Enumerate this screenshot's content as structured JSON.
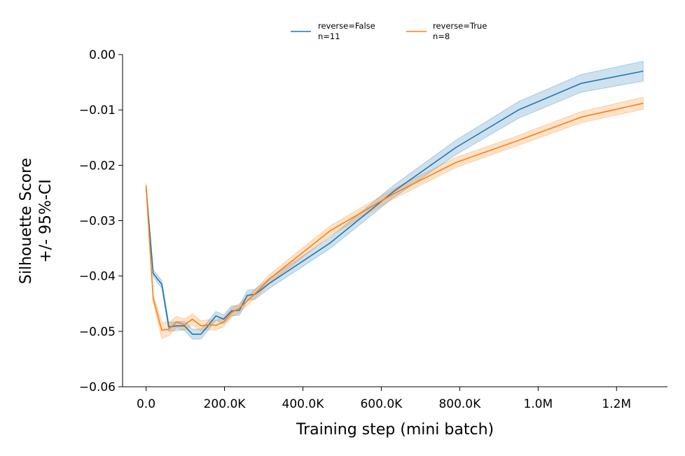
{
  "chart_data": {
    "type": "line",
    "xlabel": "Training step (mini batch)",
    "ylabel_lines": [
      "Silhouette Score",
      "+/- 95%-CI"
    ],
    "xlim": [
      -60000,
      1330000
    ],
    "ylim": [
      -0.06,
      0.0
    ],
    "x_ticks": [
      {
        "value": 0,
        "label": "0.0"
      },
      {
        "value": 200000,
        "label": "200.0K"
      },
      {
        "value": 400000,
        "label": "400.0K"
      },
      {
        "value": 600000,
        "label": "600.0K"
      },
      {
        "value": 800000,
        "label": "800.0K"
      },
      {
        "value": 1000000,
        "label": "1.0M"
      },
      {
        "value": 1200000,
        "label": "1.2M"
      }
    ],
    "y_ticks": [
      {
        "value": 0.0,
        "label": "0.00"
      },
      {
        "value": -0.01,
        "label": "−0.01"
      },
      {
        "value": -0.02,
        "label": "−0.02"
      },
      {
        "value": -0.03,
        "label": "−0.03"
      },
      {
        "value": -0.04,
        "label": "−0.04"
      },
      {
        "value": -0.05,
        "label": "−0.05"
      },
      {
        "value": -0.06,
        "label": "−0.06"
      }
    ],
    "grid": false,
    "legend_placement": "top-center",
    "series": [
      {
        "name": "reverse=False",
        "n_label": "n=11",
        "color": "#1f77b4",
        "points": [
          {
            "x": 0,
            "y": -0.024,
            "ci": 0.0005
          },
          {
            "x": 18000,
            "y": -0.0395,
            "ci": 0.0006
          },
          {
            "x": 40000,
            "y": -0.0415,
            "ci": 0.0007
          },
          {
            "x": 58000,
            "y": -0.0492,
            "ci": 0.0008
          },
          {
            "x": 78000,
            "y": -0.049,
            "ci": 0.0008
          },
          {
            "x": 98000,
            "y": -0.049,
            "ci": 0.0008
          },
          {
            "x": 118000,
            "y": -0.0505,
            "ci": 0.0009
          },
          {
            "x": 140000,
            "y": -0.0505,
            "ci": 0.0009
          },
          {
            "x": 158000,
            "y": -0.049,
            "ci": 0.0008
          },
          {
            "x": 178000,
            "y": -0.0472,
            "ci": 0.0008
          },
          {
            "x": 198000,
            "y": -0.0478,
            "ci": 0.0008
          },
          {
            "x": 218000,
            "y": -0.0463,
            "ci": 0.0009
          },
          {
            "x": 238000,
            "y": -0.0462,
            "ci": 0.0009
          },
          {
            "x": 258000,
            "y": -0.0435,
            "ci": 0.0009
          },
          {
            "x": 278000,
            "y": -0.0433,
            "ci": 0.0009
          },
          {
            "x": 315000,
            "y": -0.0413,
            "ci": 0.0009
          },
          {
            "x": 470000,
            "y": -0.034,
            "ci": 0.001
          },
          {
            "x": 630000,
            "y": -0.0248,
            "ci": 0.0011
          },
          {
            "x": 790000,
            "y": -0.0168,
            "ci": 0.0013
          },
          {
            "x": 950000,
            "y": -0.01,
            "ci": 0.0015
          },
          {
            "x": 1110000,
            "y": -0.0052,
            "ci": 0.0016
          },
          {
            "x": 1268000,
            "y": -0.003,
            "ci": 0.0018
          }
        ]
      },
      {
        "name": "reverse=True",
        "n_label": "n=8",
        "color": "#ff7f0e",
        "points": [
          {
            "x": 0,
            "y": -0.0237,
            "ci": 0.0005
          },
          {
            "x": 18000,
            "y": -0.044,
            "ci": 0.0006
          },
          {
            "x": 40000,
            "y": -0.0498,
            "ci": 0.0015
          },
          {
            "x": 58000,
            "y": -0.0496,
            "ci": 0.0012
          },
          {
            "x": 78000,
            "y": -0.0483,
            "ci": 0.001
          },
          {
            "x": 98000,
            "y": -0.0488,
            "ci": 0.001
          },
          {
            "x": 118000,
            "y": -0.0478,
            "ci": 0.001
          },
          {
            "x": 140000,
            "y": -0.049,
            "ci": 0.0009
          },
          {
            "x": 158000,
            "y": -0.0488,
            "ci": 0.0009
          },
          {
            "x": 178000,
            "y": -0.0489,
            "ci": 0.0009
          },
          {
            "x": 198000,
            "y": -0.0483,
            "ci": 0.0008
          },
          {
            "x": 218000,
            "y": -0.0466,
            "ci": 0.0008
          },
          {
            "x": 238000,
            "y": -0.0458,
            "ci": 0.0008
          },
          {
            "x": 258000,
            "y": -0.0445,
            "ci": 0.0008
          },
          {
            "x": 278000,
            "y": -0.0432,
            "ci": 0.0008
          },
          {
            "x": 315000,
            "y": -0.0405,
            "ci": 0.0008
          },
          {
            "x": 470000,
            "y": -0.0318,
            "ci": 0.0009
          },
          {
            "x": 630000,
            "y": -0.0252,
            "ci": 0.0009
          },
          {
            "x": 790000,
            "y": -0.0195,
            "ci": 0.0009
          },
          {
            "x": 950000,
            "y": -0.0155,
            "ci": 0.0009
          },
          {
            "x": 1110000,
            "y": -0.0113,
            "ci": 0.001
          },
          {
            "x": 1268000,
            "y": -0.0088,
            "ci": 0.0011
          }
        ]
      }
    ]
  }
}
